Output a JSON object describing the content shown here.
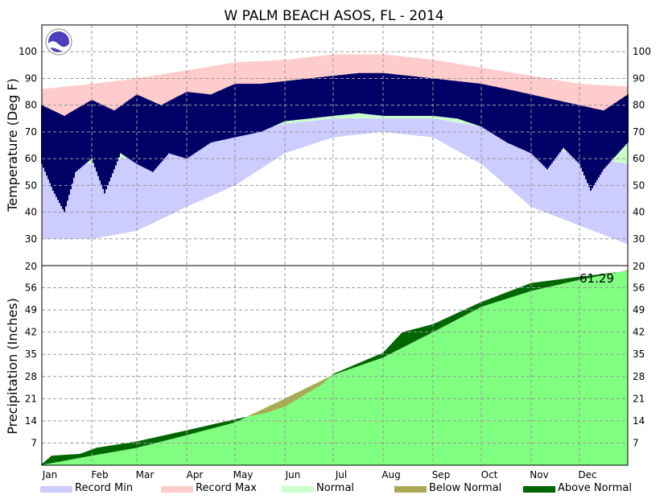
{
  "chart_data": {
    "type": "area",
    "title": "W PALM BEACH ASOS, FL - 2014",
    "months": [
      "Jan",
      "Feb",
      "Mar",
      "Apr",
      "May",
      "Jun",
      "Jul",
      "Aug",
      "Sep",
      "Oct",
      "Nov",
      "Dec"
    ],
    "temperature": {
      "ylabel": "Temperature (Deg F)",
      "ylim": [
        20,
        110
      ],
      "ticks": [
        30,
        40,
        50,
        60,
        70,
        80,
        90,
        100
      ],
      "normal_high": [
        {
          "day": 1,
          "value": 75
        },
        {
          "day": 32,
          "value": 76
        },
        {
          "day": 60,
          "value": 78
        },
        {
          "day": 91,
          "value": 81
        },
        {
          "day": 121,
          "value": 85
        },
        {
          "day": 152,
          "value": 88
        },
        {
          "day": 182,
          "value": 90
        },
        {
          "day": 213,
          "value": 90
        },
        {
          "day": 244,
          "value": 89
        },
        {
          "day": 274,
          "value": 86
        },
        {
          "day": 305,
          "value": 82
        },
        {
          "day": 335,
          "value": 78
        },
        {
          "day": 365,
          "value": 75
        }
      ],
      "normal_low": [
        {
          "day": 1,
          "value": 58
        },
        {
          "day": 32,
          "value": 58
        },
        {
          "day": 60,
          "value": 61
        },
        {
          "day": 91,
          "value": 64
        },
        {
          "day": 121,
          "value": 69
        },
        {
          "day": 152,
          "value": 73
        },
        {
          "day": 182,
          "value": 75
        },
        {
          "day": 213,
          "value": 75
        },
        {
          "day": 244,
          "value": 75
        },
        {
          "day": 274,
          "value": 72
        },
        {
          "day": 305,
          "value": 66
        },
        {
          "day": 335,
          "value": 61
        },
        {
          "day": 365,
          "value": 58
        }
      ],
      "record_max": [
        {
          "day": 1,
          "value": 86
        },
        {
          "day": 32,
          "value": 88
        },
        {
          "day": 60,
          "value": 90
        },
        {
          "day": 91,
          "value": 93
        },
        {
          "day": 121,
          "value": 96
        },
        {
          "day": 152,
          "value": 97
        },
        {
          "day": 182,
          "value": 99
        },
        {
          "day": 213,
          "value": 99
        },
        {
          "day": 244,
          "value": 97
        },
        {
          "day": 274,
          "value": 94
        },
        {
          "day": 305,
          "value": 91
        },
        {
          "day": 335,
          "value": 88
        },
        {
          "day": 365,
          "value": 87
        }
      ],
      "record_min": [
        {
          "day": 1,
          "value": 30
        },
        {
          "day": 32,
          "value": 30
        },
        {
          "day": 60,
          "value": 33
        },
        {
          "day": 91,
          "value": 42
        },
        {
          "day": 121,
          "value": 50
        },
        {
          "day": 152,
          "value": 62
        },
        {
          "day": 182,
          "value": 68
        },
        {
          "day": 213,
          "value": 70
        },
        {
          "day": 244,
          "value": 68
        },
        {
          "day": 274,
          "value": 58
        },
        {
          "day": 305,
          "value": 42
        },
        {
          "day": 335,
          "value": 35
        },
        {
          "day": 365,
          "value": 28
        }
      ],
      "observed_high": [
        {
          "day": 1,
          "value": 80
        },
        {
          "day": 15,
          "value": 76
        },
        {
          "day": 32,
          "value": 82
        },
        {
          "day": 46,
          "value": 78
        },
        {
          "day": 60,
          "value": 84
        },
        {
          "day": 75,
          "value": 80
        },
        {
          "day": 91,
          "value": 85
        },
        {
          "day": 106,
          "value": 84
        },
        {
          "day": 121,
          "value": 88
        },
        {
          "day": 137,
          "value": 88
        },
        {
          "day": 152,
          "value": 89
        },
        {
          "day": 167,
          "value": 90
        },
        {
          "day": 182,
          "value": 91
        },
        {
          "day": 198,
          "value": 92
        },
        {
          "day": 213,
          "value": 92
        },
        {
          "day": 229,
          "value": 91
        },
        {
          "day": 244,
          "value": 90
        },
        {
          "day": 259,
          "value": 89
        },
        {
          "day": 274,
          "value": 88
        },
        {
          "day": 290,
          "value": 86
        },
        {
          "day": 305,
          "value": 84
        },
        {
          "day": 320,
          "value": 82
        },
        {
          "day": 335,
          "value": 80
        },
        {
          "day": 350,
          "value": 78
        },
        {
          "day": 365,
          "value": 84
        }
      ],
      "observed_low": [
        {
          "day": 1,
          "value": 58
        },
        {
          "day": 8,
          "value": 48
        },
        {
          "day": 15,
          "value": 40
        },
        {
          "day": 22,
          "value": 55
        },
        {
          "day": 32,
          "value": 60
        },
        {
          "day": 40,
          "value": 47
        },
        {
          "day": 50,
          "value": 62
        },
        {
          "day": 60,
          "value": 58
        },
        {
          "day": 70,
          "value": 55
        },
        {
          "day": 80,
          "value": 62
        },
        {
          "day": 91,
          "value": 60
        },
        {
          "day": 106,
          "value": 66
        },
        {
          "day": 121,
          "value": 68
        },
        {
          "day": 137,
          "value": 70
        },
        {
          "day": 152,
          "value": 74
        },
        {
          "day": 167,
          "value": 75
        },
        {
          "day": 182,
          "value": 76
        },
        {
          "day": 198,
          "value": 77
        },
        {
          "day": 213,
          "value": 76
        },
        {
          "day": 229,
          "value": 76
        },
        {
          "day": 244,
          "value": 76
        },
        {
          "day": 259,
          "value": 75
        },
        {
          "day": 274,
          "value": 72
        },
        {
          "day": 290,
          "value": 66
        },
        {
          "day": 305,
          "value": 62
        },
        {
          "day": 315,
          "value": 56
        },
        {
          "day": 325,
          "value": 64
        },
        {
          "day": 335,
          "value": 58
        },
        {
          "day": 342,
          "value": 48
        },
        {
          "day": 350,
          "value": 56
        },
        {
          "day": 365,
          "value": 66
        }
      ]
    },
    "precipitation": {
      "ylabel": "Precipitation (Inches)",
      "ylim": [
        0,
        63
      ],
      "ticks": [
        7,
        14,
        21,
        28,
        35,
        42,
        49,
        56
      ],
      "right_top_tick": "20",
      "annotation": "61.29",
      "normal_cumulative": [
        {
          "day": 1,
          "value": 0.1
        },
        {
          "day": 32,
          "value": 3.0
        },
        {
          "day": 60,
          "value": 5.5
        },
        {
          "day": 91,
          "value": 9.5
        },
        {
          "day": 121,
          "value": 13.5
        },
        {
          "day": 152,
          "value": 21.0
        },
        {
          "day": 182,
          "value": 28.5
        },
        {
          "day": 213,
          "value": 34.0
        },
        {
          "day": 244,
          "value": 42.0
        },
        {
          "day": 274,
          "value": 50.0
        },
        {
          "day": 305,
          "value": 55.0
        },
        {
          "day": 335,
          "value": 58.5
        },
        {
          "day": 365,
          "value": 61.5
        }
      ],
      "observed_cumulative": [
        {
          "day": 1,
          "value": 0.3
        },
        {
          "day": 7,
          "value": 3.0
        },
        {
          "day": 25,
          "value": 3.6
        },
        {
          "day": 35,
          "value": 5.5
        },
        {
          "day": 60,
          "value": 7.5
        },
        {
          "day": 91,
          "value": 11.0
        },
        {
          "day": 121,
          "value": 14.5
        },
        {
          "day": 140,
          "value": 16.5
        },
        {
          "day": 152,
          "value": 18.5
        },
        {
          "day": 165,
          "value": 22.5
        },
        {
          "day": 175,
          "value": 25.5
        },
        {
          "day": 182,
          "value": 28.8
        },
        {
          "day": 213,
          "value": 35.5
        },
        {
          "day": 225,
          "value": 42.0
        },
        {
          "day": 244,
          "value": 44.5
        },
        {
          "day": 274,
          "value": 51.5
        },
        {
          "day": 305,
          "value": 57.5
        },
        {
          "day": 335,
          "value": 59.5
        },
        {
          "day": 365,
          "value": 61.29
        }
      ]
    },
    "legend": [
      {
        "label": "Record Min",
        "color": "#ccccff"
      },
      {
        "label": "Record Max",
        "color": "#ffcccc"
      },
      {
        "label": "Normal",
        "color": "#ccffcc"
      },
      {
        "label": "Below Normal",
        "color": "#aaaa55"
      },
      {
        "label": "Above Normal",
        "color": "#006600"
      }
    ],
    "colors": {
      "observed_temp": "#000066",
      "normal_precip": "#80ff80",
      "above_normal": "#006600",
      "below_normal": "#aaaa55"
    }
  }
}
